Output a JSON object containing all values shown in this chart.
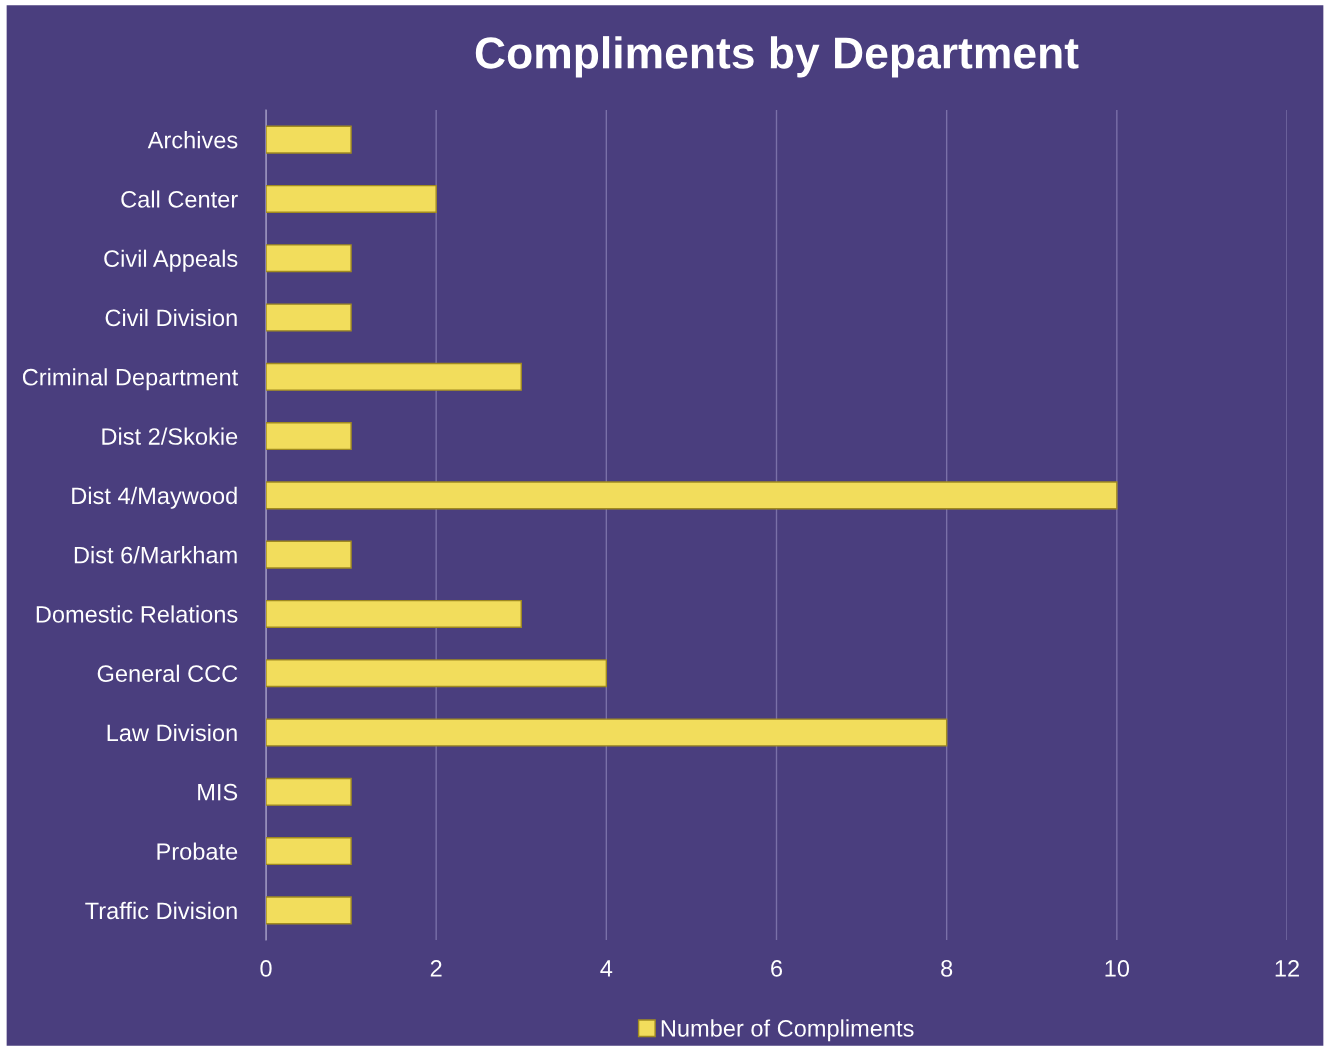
{
  "chart_data": {
    "type": "bar",
    "orientation": "horizontal",
    "title": "Compliments by Department",
    "categories": [
      "Archives",
      "Call Center",
      "Civil Appeals",
      "Civil Division",
      "Criminal Department",
      "Dist 2/Skokie",
      "Dist 4/Maywood",
      "Dist 6/Markham",
      "Domestic Relations",
      "General CCC",
      "Law Division",
      "MIS",
      "Probate",
      "Traffic Division"
    ],
    "series": [
      {
        "name": "Number of Compliments",
        "color": "#f2dd5c",
        "values": [
          1,
          2,
          1,
          1,
          3,
          1,
          10,
          1,
          3,
          4,
          8,
          1,
          1,
          1
        ]
      }
    ],
    "xlim": [
      0,
      12
    ],
    "xticks": [
      0,
      2,
      4,
      6,
      8,
      10,
      12
    ],
    "grid": "x",
    "legend": "bottom"
  }
}
